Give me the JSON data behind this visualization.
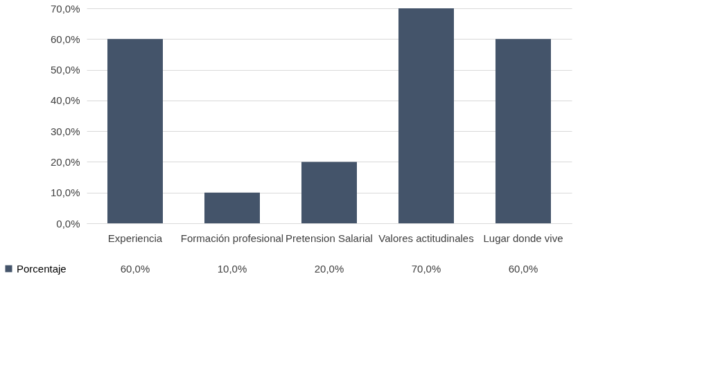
{
  "chart_data": {
    "type": "bar",
    "categories": [
      "Experiencia",
      "Formación profesional",
      "Pretension Salarial",
      "Valores actitudinales",
      "Lugar donde vive"
    ],
    "series": [
      {
        "name": "Porcentaje",
        "color": "#44546a",
        "values": [
          60,
          10,
          20,
          70,
          60
        ],
        "value_labels": [
          "60,0%",
          "10,0%",
          "20,0%",
          "70,0%",
          "60,0%"
        ]
      }
    ],
    "ylim": [
      0,
      70
    ],
    "yticks": [
      {
        "value": 0,
        "label": "0,0%"
      },
      {
        "value": 10,
        "label": "10,0%"
      },
      {
        "value": 20,
        "label": "20,0%"
      },
      {
        "value": 30,
        "label": "30,0%"
      },
      {
        "value": 40,
        "label": "40,0%"
      },
      {
        "value": 50,
        "label": "50,0%"
      },
      {
        "value": 60,
        "label": "60,0%"
      },
      {
        "value": 70,
        "label": "70,0%"
      }
    ],
    "grid": "y",
    "legend": "bottom left"
  }
}
